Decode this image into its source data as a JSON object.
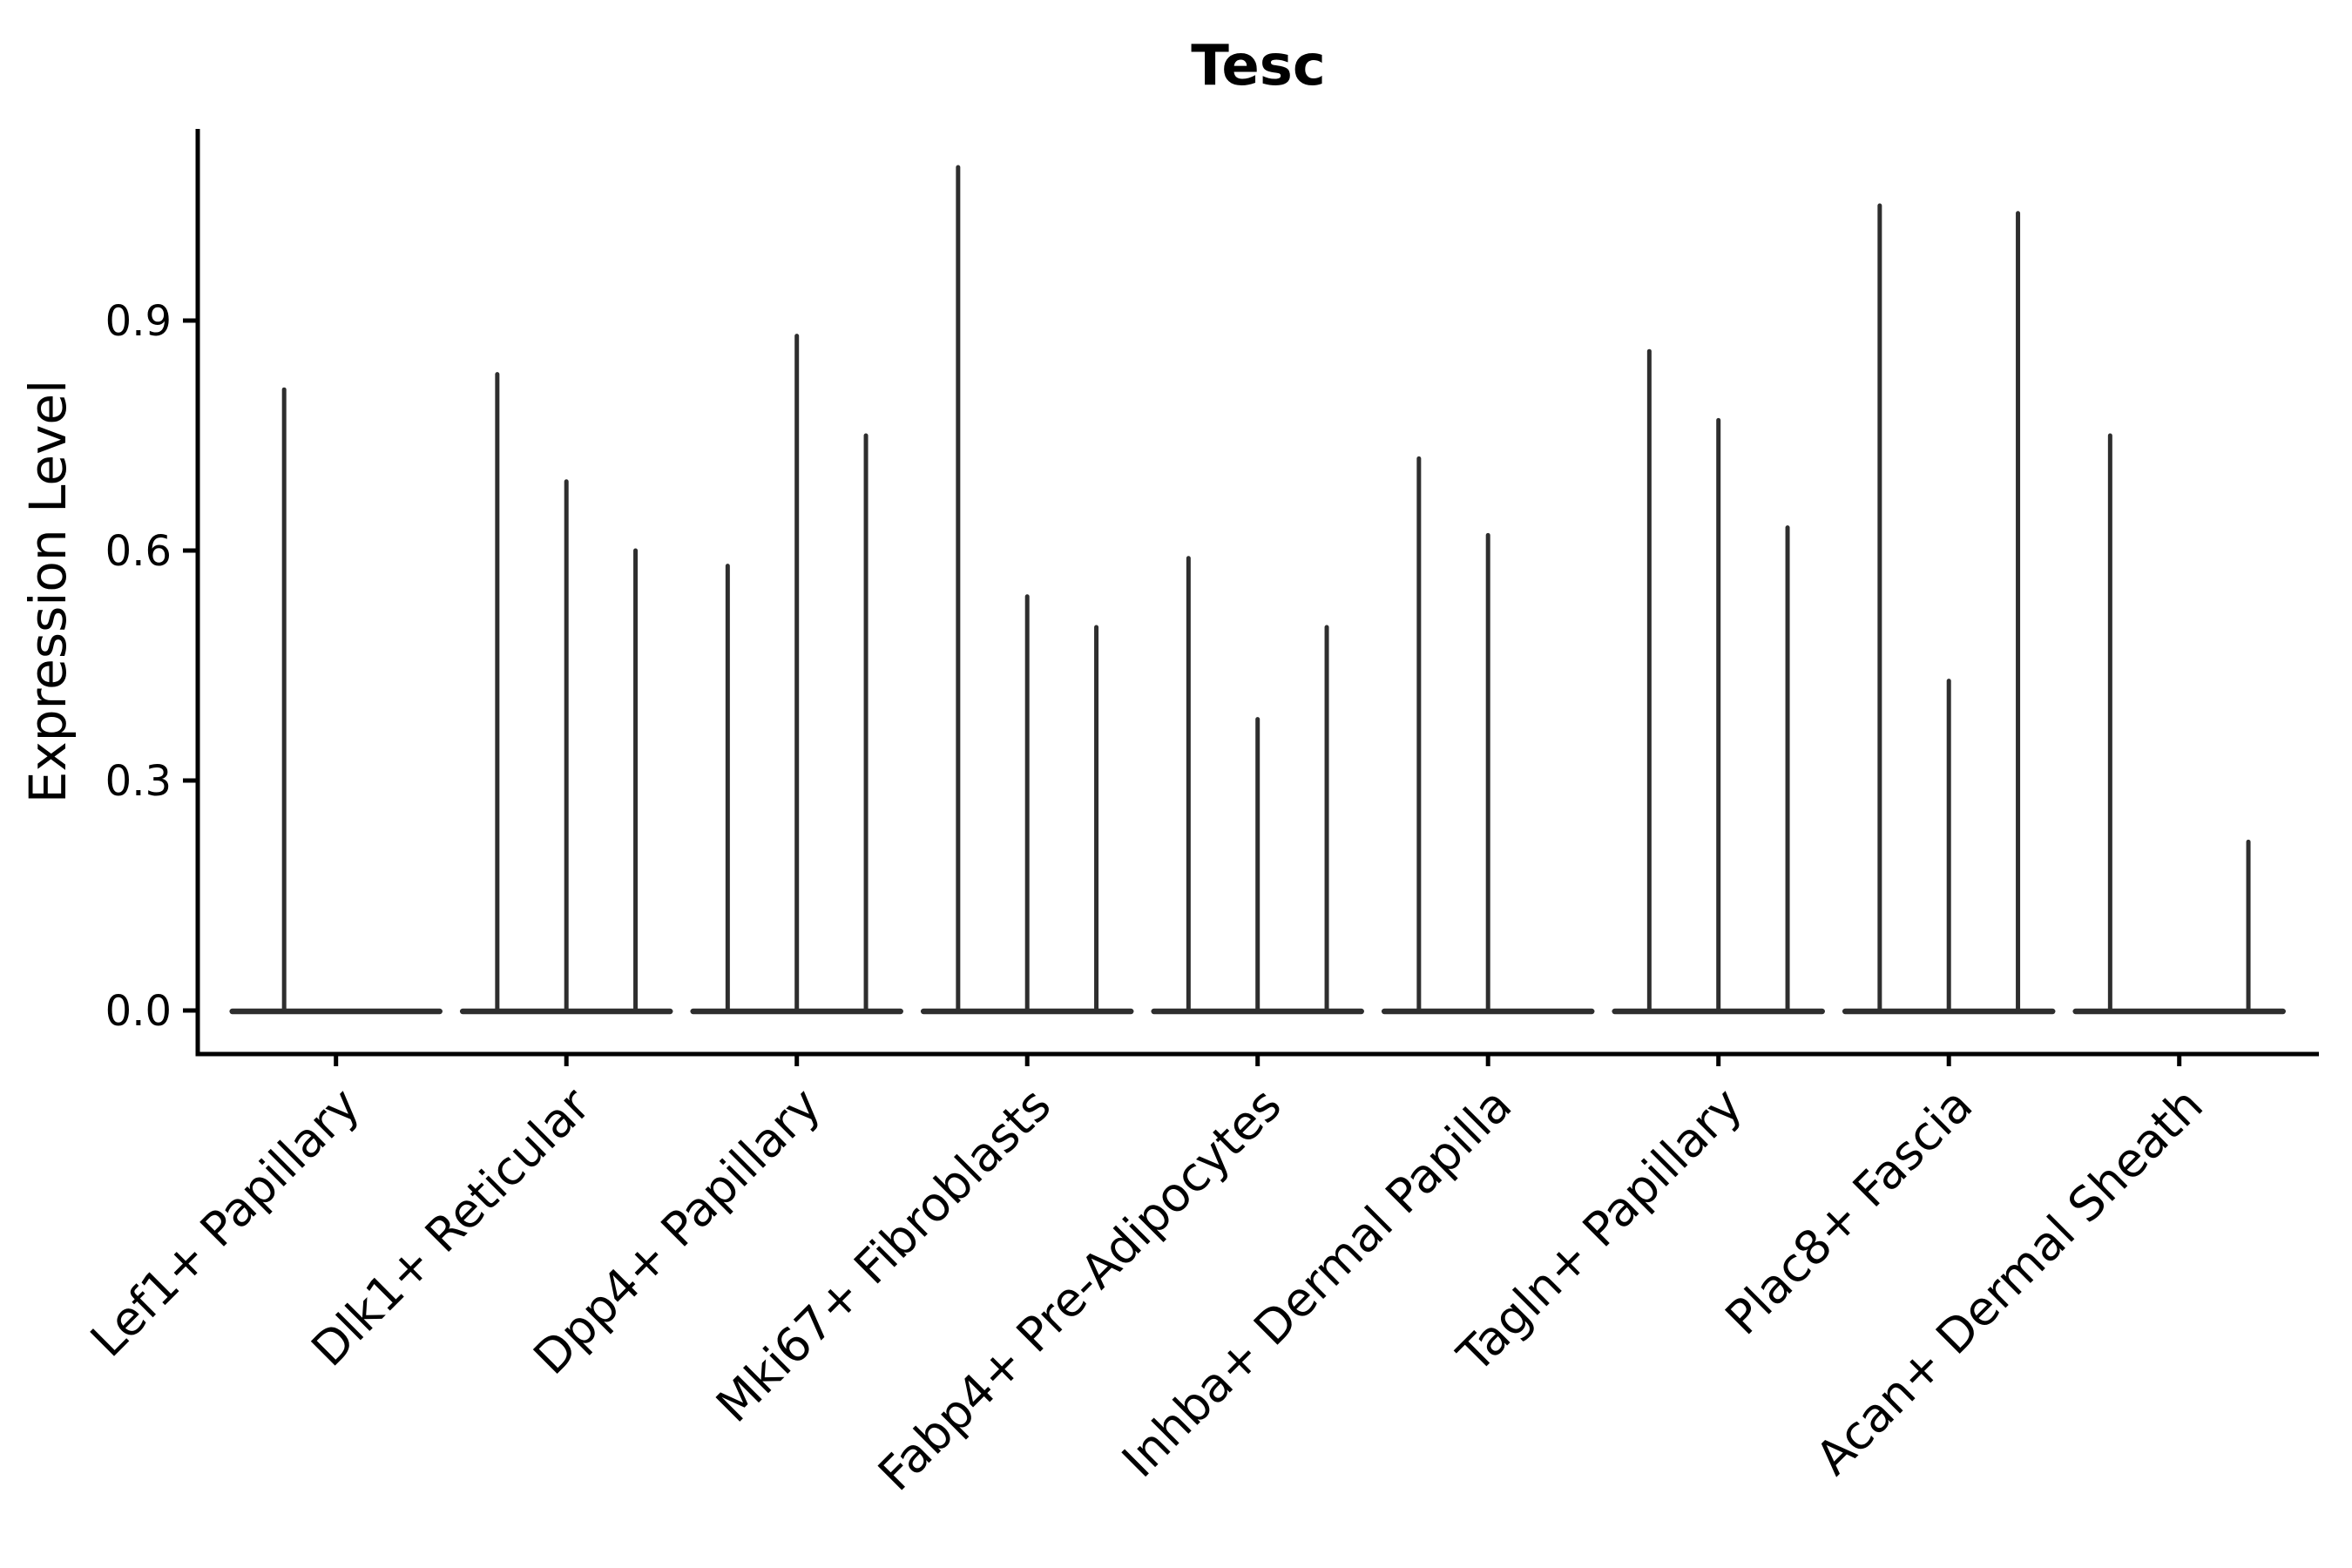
{
  "chart_data": {
    "type": "violin",
    "title": "Tesc",
    "ylabel": "Expression Level",
    "xlabel": "",
    "yticks": [
      "0.0",
      "0.3",
      "0.6",
      "0.9"
    ],
    "ytick_values": [
      0.0,
      0.3,
      0.6,
      0.9
    ],
    "ylim": [
      -0.06,
      1.15
    ],
    "grid": false,
    "legend": "none",
    "style": {
      "violin_color": "#2e2e2e",
      "axis_color": "#000000",
      "text_color": "#000000",
      "background": "#ffffff"
    },
    "layout_note": "Needle-style violin plot: each cell-type category has 2-3 dodged violins whose mass sits at 0 (flat base bar) with a thin vertical tail; 'tails' lists each violin's maximum expression value, 0 = completely flat violin.",
    "categories": [
      "Lef1+ Papillary",
      "Dlk1+ Reticular",
      "Dpp4+ Papillary",
      "Mki67+ Fibroblasts",
      "Fabp4+ Pre-Adipocytes",
      "Inhba+ Dermal Papilla",
      "Tagln+ Papillary",
      "Plac8+ Fascia",
      "Acan+ Dermal Sheath"
    ],
    "violins": [
      {
        "category": "Lef1+ Papillary",
        "tails": [
          0.81,
          0
        ]
      },
      {
        "category": "Dlk1+ Reticular",
        "tails": [
          0.83,
          0.69,
          0.6
        ]
      },
      {
        "category": "Dpp4+ Papillary",
        "tails": [
          0.58,
          0.88,
          0.75
        ]
      },
      {
        "category": "Mki67+ Fibroblasts",
        "tails": [
          1.1,
          0.54,
          0.5
        ]
      },
      {
        "category": "Fabp4+ Pre-Adipocytes",
        "tails": [
          0.59,
          0.38,
          0.5
        ]
      },
      {
        "category": "Inhba+ Dermal Papilla",
        "tails": [
          0.72,
          0.62,
          0
        ]
      },
      {
        "category": "Tagln+ Papillary",
        "tails": [
          0.86,
          0.77,
          0.63
        ]
      },
      {
        "category": "Plac8+ Fascia",
        "tails": [
          1.05,
          0.43,
          1.04
        ]
      },
      {
        "category": "Acan+ Dermal Sheath",
        "tails": [
          0.75,
          0,
          0.22
        ]
      }
    ]
  }
}
